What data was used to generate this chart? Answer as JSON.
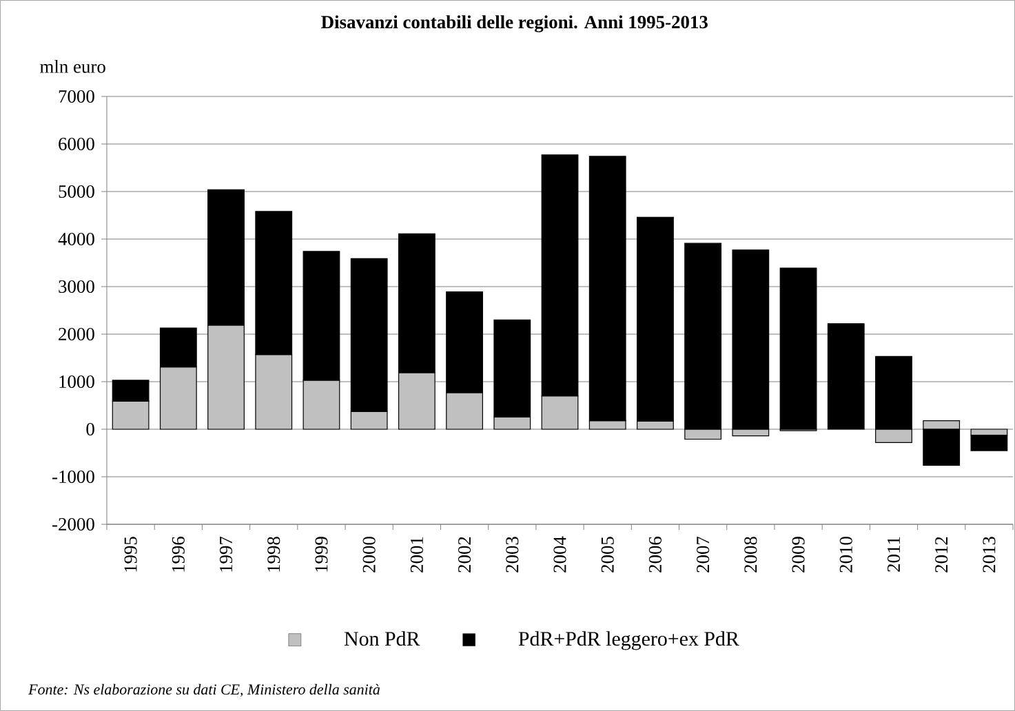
{
  "chart_data": {
    "type": "bar",
    "stacked": true,
    "title": "Disavanzi contabili delle regioni. Anni 1995-2013",
    "ylabel": "mln euro",
    "categories": [
      "1995",
      "1996",
      "1997",
      "1998",
      "1999",
      "2000",
      "2001",
      "2002",
      "2003",
      "2004",
      "2005",
      "2006",
      "2007",
      "2008",
      "2009",
      "2010",
      "2011",
      "2012",
      "2013"
    ],
    "series": [
      {
        "name": "Non PdR",
        "color": "#c0c0c0",
        "values": [
          590,
          1310,
          2190,
          1570,
          1030,
          370,
          1190,
          770,
          260,
          700,
          180,
          170,
          -210,
          -140,
          -30,
          null,
          -280,
          180,
          -130
        ]
      },
      {
        "name": "PdR+PdR leggero+ex PdR",
        "color": "#000000",
        "values": [
          440,
          820,
          2850,
          3010,
          2710,
          3220,
          2920,
          2120,
          2040,
          5070,
          5560,
          4290,
          3910,
          3770,
          3390,
          2220,
          1530,
          -760,
          -320
        ]
      }
    ],
    "ylim": [
      -2000,
      7000
    ],
    "yticks": [
      -2000,
      -1000,
      0,
      1000,
      2000,
      3000,
      4000,
      5000,
      6000,
      7000
    ],
    "grid": "y",
    "legend": "bottom",
    "annotations": [
      "Fonte: Ns elaborazione su dati  CE, Ministero della sanità"
    ]
  }
}
